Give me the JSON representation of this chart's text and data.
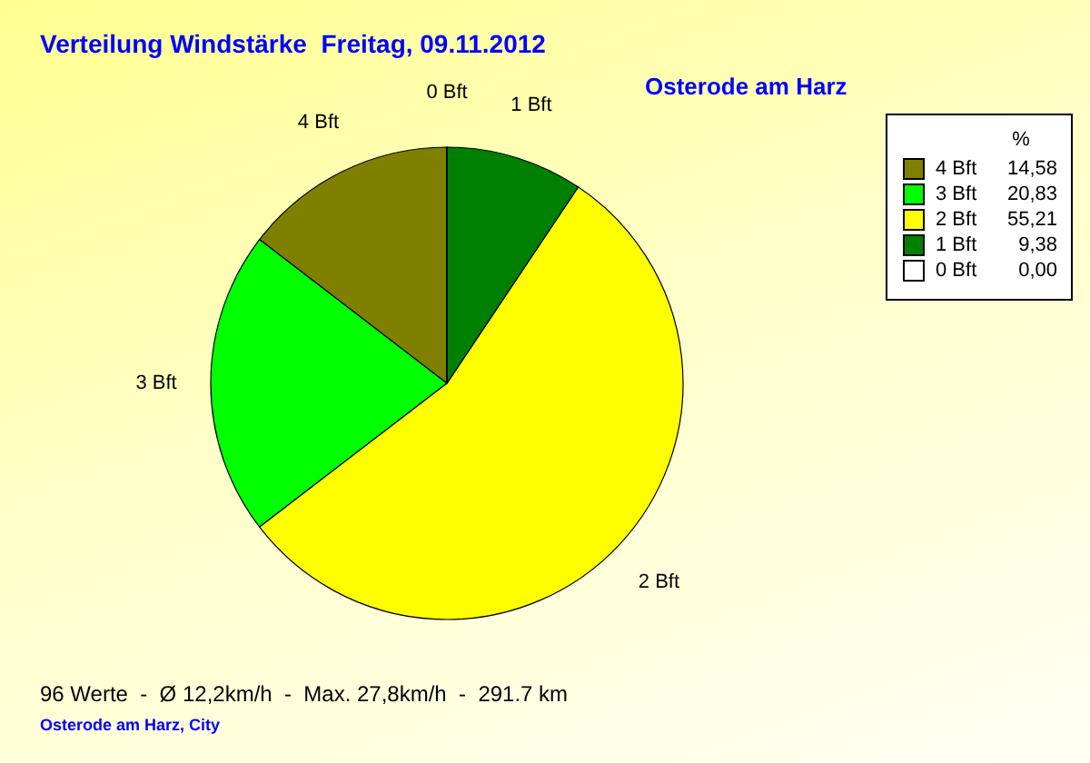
{
  "chart_data": {
    "type": "pie",
    "title": "Verteilung Windstärke  Freitag, 09.11.2012",
    "subtitle": "Osterode am Harz",
    "legend_title": "%",
    "categories": [
      "4 Bft",
      "3 Bft",
      "2 Bft",
      "1 Bft",
      "0 Bft"
    ],
    "values": [
      14.58,
      20.83,
      55.21,
      9.38,
      0.0
    ],
    "value_labels": [
      "14,58",
      "20,83",
      "55,21",
      "9,38",
      "0,00"
    ],
    "colors": [
      "#808000",
      "#00ff00",
      "#ffff00",
      "#008000",
      "#ffffff"
    ],
    "legend": "top right",
    "annotations": [
      "96 Werte  -  Ø 12,2km/h  -  Max. 27,8km/h  -  291.7 km",
      "Osterode am Harz, City"
    ]
  }
}
